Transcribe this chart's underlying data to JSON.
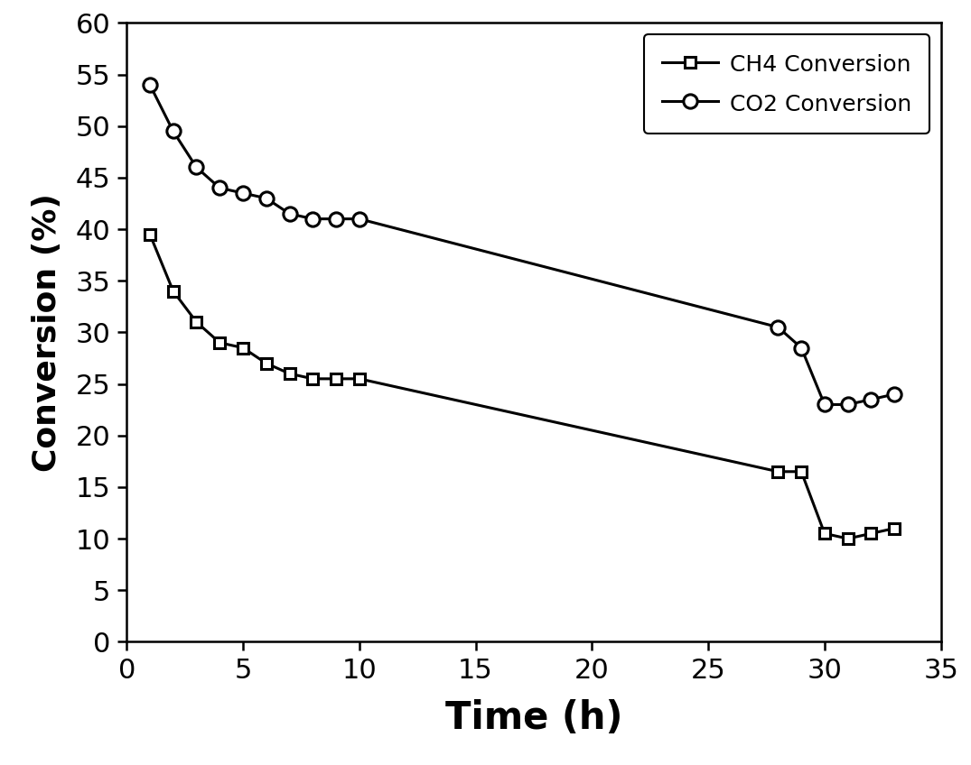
{
  "ch4_x": [
    1,
    2,
    3,
    4,
    5,
    6,
    7,
    8,
    9,
    10,
    28,
    29,
    30,
    31,
    32,
    33
  ],
  "ch4_y": [
    39.5,
    34.0,
    31.0,
    29.0,
    28.5,
    27.0,
    26.0,
    25.5,
    25.5,
    25.5,
    16.5,
    16.5,
    10.5,
    10.0,
    10.5,
    11.0
  ],
  "co2_x": [
    1,
    2,
    3,
    4,
    5,
    6,
    7,
    8,
    9,
    10,
    28,
    29,
    30,
    31,
    32,
    33
  ],
  "co2_y": [
    54.0,
    49.5,
    46.0,
    44.0,
    43.5,
    43.0,
    41.5,
    41.0,
    41.0,
    41.0,
    30.5,
    28.5,
    23.0,
    23.0,
    23.5,
    24.0
  ],
  "xlabel": "Time (h)",
  "ylabel": "Conversion (%)",
  "ch4_label": "CH4 Conversion",
  "co2_label": "CO2 Conversion",
  "xlim": [
    0,
    35
  ],
  "ylim": [
    0,
    60
  ],
  "xticks": [
    0,
    5,
    10,
    15,
    20,
    25,
    30,
    35
  ],
  "yticks": [
    0,
    5,
    10,
    15,
    20,
    25,
    30,
    35,
    40,
    45,
    50,
    55,
    60
  ],
  "line_color": "#000000",
  "marker_color": "#000000",
  "background_color": "#ffffff",
  "linewidth": 2.2,
  "ch4_markersize": 9,
  "co2_markersize": 11,
  "tick_labelsize": 22,
  "xlabel_fontsize": 30,
  "ylabel_fontsize": 26,
  "legend_fontsize": 18
}
